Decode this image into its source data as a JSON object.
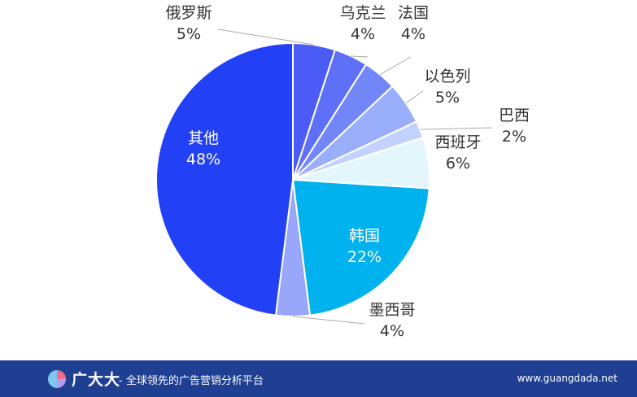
{
  "chart_data": {
    "type": "pie",
    "slices": [
      {
        "label": "俄罗斯",
        "value": 5,
        "value_label": "5%",
        "color": "#4a5cf5"
      },
      {
        "label": "乌克兰",
        "value": 4,
        "value_label": "4%",
        "color": "#5d70f7"
      },
      {
        "label": "法国",
        "value": 4,
        "value_label": "4%",
        "color": "#7386f8"
      },
      {
        "label": "以色列",
        "value": 5,
        "value_label": "5%",
        "color": "#9aaffb"
      },
      {
        "label": "巴西",
        "value": 2,
        "value_label": "2%",
        "color": "#c3d2fc"
      },
      {
        "label": "西班牙",
        "value": 6,
        "value_label": "6%",
        "color": "#e2f6fb"
      },
      {
        "label": "韩国",
        "value": 22,
        "value_label": "22%",
        "color": "#00b2ee"
      },
      {
        "label": "墨西哥",
        "value": 4,
        "value_label": "4%",
        "color": "#9aa6fa"
      },
      {
        "label": "其他",
        "value": 48,
        "value_label": "48%",
        "color": "#2240f5"
      }
    ]
  },
  "footer": {
    "brand_name": "广大大",
    "tagline": "- 全球领先的广告营销分析平台",
    "url": "www.guangdada.net",
    "logo_icon": "pie-logo-icon"
  }
}
